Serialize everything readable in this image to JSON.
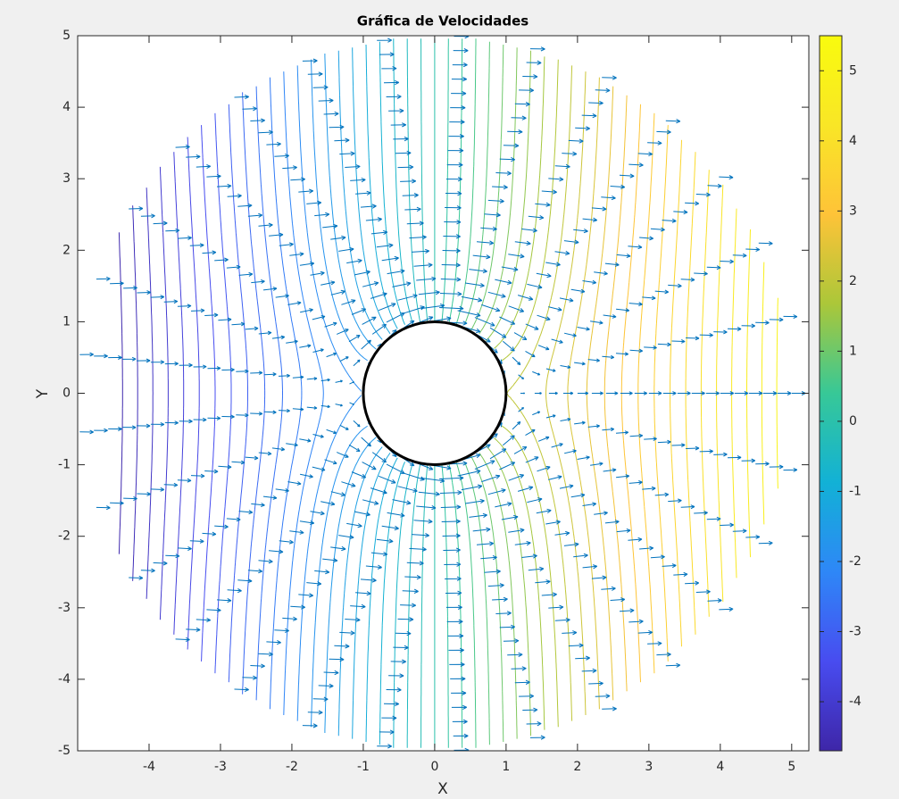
{
  "chart_data": {
    "type": "contour-quiver",
    "title": "Gráfica de Velocidades",
    "xlabel": "X",
    "ylabel": "Y",
    "xlim": [
      -5,
      5.24
    ],
    "ylim": [
      -5,
      5
    ],
    "xticks": [
      -4,
      -3,
      -2,
      -1,
      0,
      1,
      2,
      3,
      4,
      5
    ],
    "yticks": [
      -5,
      -4,
      -3,
      -2,
      -1,
      0,
      1,
      2,
      3,
      4,
      5
    ],
    "freestream_velocity": 1,
    "cylinder_radius": 1,
    "cylinder_color": "#000000",
    "contour": {
      "levels": [
        -4.6,
        -4.4,
        -4.2,
        -4.0,
        -3.8,
        -3.6,
        -3.4,
        -3.2,
        -3.0,
        -2.8,
        -2.6,
        -2.4,
        -2.2,
        -2.0,
        -1.8,
        -1.6,
        -1.4,
        -1.2,
        -1.0,
        -0.8,
        -0.6,
        -0.4,
        -0.2,
        0,
        0.2,
        0.4,
        0.6,
        0.8,
        1.0,
        1.2,
        1.4,
        1.6,
        1.8,
        2.0,
        2.2,
        2.4,
        2.6,
        2.8,
        3.0,
        3.2,
        3.4,
        3.6,
        3.8,
        4.0,
        4.2,
        4.4,
        4.6,
        4.8,
        5.0,
        5.2,
        5.4
      ],
      "colormap": "parula"
    },
    "quiver": {
      "color": "#0072bd",
      "r": [
        1,
        1.2,
        1.4,
        1.6,
        1.8,
        2.0,
        2.2,
        2.4,
        2.6,
        2.8,
        3.0,
        3.2,
        3.4,
        3.6,
        3.8,
        4.0,
        4.2,
        4.4,
        4.6,
        4.8,
        5.0
      ],
      "theta_deg": [
        0,
        12.41,
        24.83,
        37.24,
        49.66,
        62.07,
        74.48,
        86.9,
        99.31,
        111.72,
        124.14,
        136.55,
        148.97,
        161.38,
        173.79,
        186.21,
        198.62,
        211.03,
        223.45,
        235.86,
        248.28,
        260.69,
        273.1,
        285.52,
        297.93,
        310.34,
        322.76,
        335.17,
        347.59
      ]
    },
    "colorbar": {
      "lim": [
        -4.7,
        5.5
      ],
      "ticks": [
        -4,
        -3,
        -2,
        -1,
        0,
        1,
        2,
        3,
        4,
        5
      ]
    }
  }
}
